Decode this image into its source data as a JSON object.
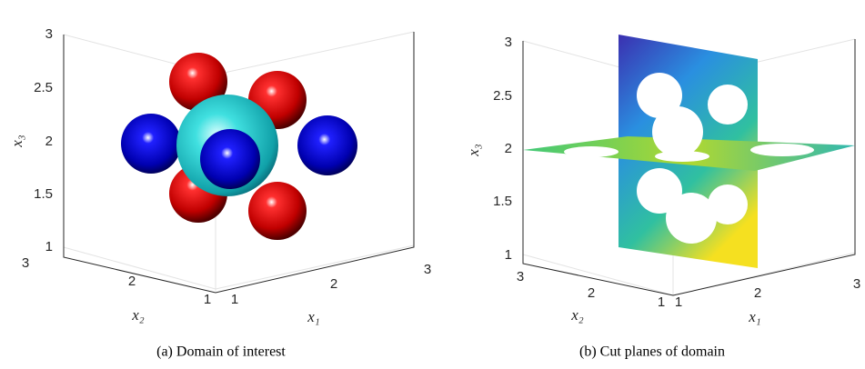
{
  "panels": [
    {
      "caption": "(a) Domain of interest",
      "x3": {
        "label": "x₃",
        "ticks": [
          "1",
          "1.5",
          "2",
          "2.5",
          "3"
        ]
      },
      "x2": {
        "label": "x₂",
        "ticks": [
          "3",
          "2",
          "1"
        ]
      },
      "x1": {
        "label": "x₁",
        "ticks": [
          "1",
          "2",
          "3"
        ]
      }
    },
    {
      "caption": "(b) Cut planes of domain",
      "x3": {
        "label": "x₃",
        "ticks": [
          "1",
          "1.5",
          "2",
          "2.5",
          "3"
        ]
      },
      "x2": {
        "label": "x₂",
        "ticks": [
          "3",
          "2",
          "1"
        ]
      },
      "x1": {
        "label": "x₁",
        "ticks": [
          "1",
          "2",
          "3"
        ]
      }
    }
  ]
}
